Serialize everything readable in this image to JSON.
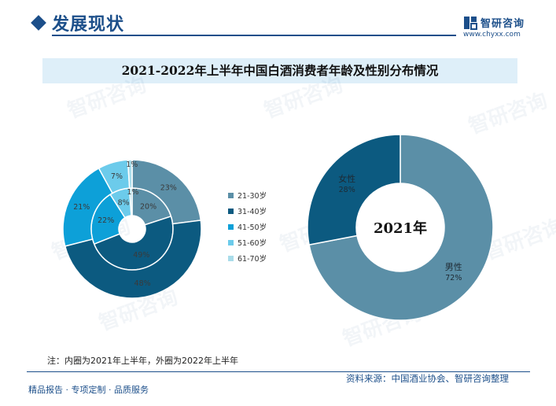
{
  "header": {
    "title": "发展现状"
  },
  "logo": {
    "name": "智研咨询",
    "url": "www.chyxx.com"
  },
  "watermark": "智研咨询",
  "chart_data": [
    {
      "type": "pie",
      "subtype": "double-donut",
      "title": "2021-2022年上半年中国白酒消费者年龄及性别分布情况",
      "categories": [
        "21-30岁",
        "31-40岁",
        "41-50岁",
        "51-60岁",
        "61-70岁"
      ],
      "colors": [
        "#5b8fa7",
        "#0c5a80",
        "#0da0d8",
        "#6ccbeb",
        "#a9dcea"
      ],
      "series": [
        {
          "name": "2021年上半年",
          "ring": "inner",
          "values": [
            20,
            49,
            22,
            8,
            1
          ],
          "labels": [
            "20%",
            "49%",
            "22%",
            "8%",
            "1%"
          ]
        },
        {
          "name": "2022年上半年",
          "ring": "outer",
          "values": [
            23,
            48,
            21,
            7,
            1
          ],
          "labels": [
            "23%",
            "48%",
            "21%",
            "7%",
            "1%"
          ]
        }
      ],
      "legend": "right"
    },
    {
      "type": "pie",
      "subtype": "donut",
      "center_label": "2021年",
      "categories": [
        "男性",
        "女性"
      ],
      "values": [
        72,
        28
      ],
      "labels": [
        "72%",
        "28%"
      ],
      "colors": [
        "#5b8fa7",
        "#0c5a80"
      ]
    }
  ],
  "footnote": "注：内圈为2021年上半年，外圈为2022年上半年",
  "footer": {
    "left": "精品报告 · 专项定制 · 品质服务",
    "source": "资料来源：中国酒业协会、智研咨询整理"
  }
}
